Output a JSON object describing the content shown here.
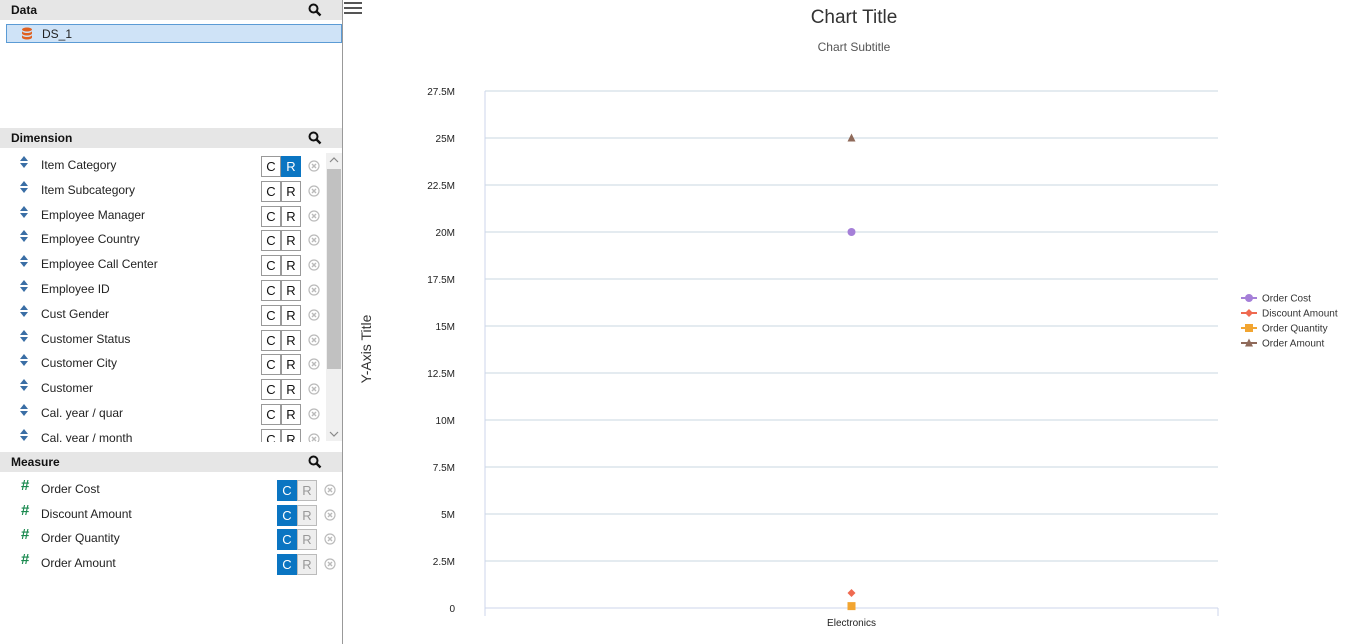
{
  "data_section": {
    "title": "Data",
    "datasets": [
      {
        "label": "DS_1"
      }
    ]
  },
  "dimension_section": {
    "title": "Dimension",
    "items": [
      {
        "label": "Item Category",
        "c": "C",
        "r": "R",
        "active": "r"
      },
      {
        "label": "Item Subcategory",
        "c": "C",
        "r": "R",
        "active": ""
      },
      {
        "label": "Employee Manager",
        "c": "C",
        "r": "R",
        "active": ""
      },
      {
        "label": "Employee Country",
        "c": "C",
        "r": "R",
        "active": ""
      },
      {
        "label": "Employee Call Center",
        "c": "C",
        "r": "R",
        "active": ""
      },
      {
        "label": "Employee ID",
        "c": "C",
        "r": "R",
        "active": ""
      },
      {
        "label": "Cust Gender",
        "c": "C",
        "r": "R",
        "active": ""
      },
      {
        "label": "Customer Status",
        "c": "C",
        "r": "R",
        "active": ""
      },
      {
        "label": "Customer City",
        "c": "C",
        "r": "R",
        "active": ""
      },
      {
        "label": "Customer",
        "c": "C",
        "r": "R",
        "active": ""
      },
      {
        "label": "Cal. year / quar",
        "c": "C",
        "r": "R",
        "active": ""
      },
      {
        "label": "Cal. year / month",
        "c": "C",
        "r": "R",
        "active": ""
      }
    ]
  },
  "measure_section": {
    "title": "Measure",
    "items": [
      {
        "label": "Order Cost",
        "c": "C",
        "r": "R"
      },
      {
        "label": "Discount Amount",
        "c": "C",
        "r": "R"
      },
      {
        "label": "Order Quantity",
        "c": "C",
        "r": "R"
      },
      {
        "label": "Order Amount",
        "c": "C",
        "r": "R"
      }
    ]
  },
  "colors": {
    "accent": "#0a75c2",
    "db_icon": "#e06020",
    "measure_hash": "#1a8a4f"
  },
  "chart_data": {
    "type": "line",
    "title": "Chart Title",
    "subtitle": "Chart Subtitle",
    "xlabel": "",
    "ylabel": "Y-Axis Title",
    "categories": [
      "Electronics"
    ],
    "ylim": [
      0,
      27500000
    ],
    "y_ticks": [
      "0",
      "2.5M",
      "5M",
      "7.5M",
      "10M",
      "12.5M",
      "15M",
      "17.5M",
      "20M",
      "22.5M",
      "25M",
      "27.5M"
    ],
    "grid": true,
    "legend_position": "right",
    "series": [
      {
        "name": "Order Cost",
        "values": [
          20000000
        ],
        "color": "#a57fd8",
        "marker": "circle"
      },
      {
        "name": "Discount Amount",
        "values": [
          800000
        ],
        "color": "#ef6a50",
        "marker": "diamond"
      },
      {
        "name": "Order Quantity",
        "values": [
          100000
        ],
        "color": "#f2a531",
        "marker": "square"
      },
      {
        "name": "Order Amount",
        "values": [
          25000000
        ],
        "color": "#8f6a5a",
        "marker": "triangle"
      }
    ]
  }
}
